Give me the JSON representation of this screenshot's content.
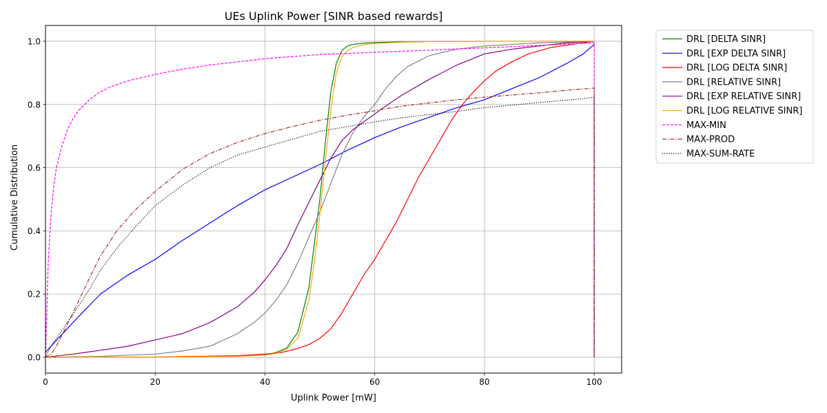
{
  "chart_data": {
    "type": "line",
    "title": "UEs Uplink Power [SINR based rewards]",
    "xlabel": "Uplink Power [mW]",
    "ylabel": "Cumulative Distribution",
    "xlim": [
      0,
      105
    ],
    "ylim": [
      -0.05,
      1.05
    ],
    "xticks": [
      0,
      20,
      40,
      60,
      80,
      100
    ],
    "xtick_labels": [
      "0",
      "20",
      "40",
      "60",
      "80",
      "100"
    ],
    "yticks": [
      0.0,
      0.2,
      0.4,
      0.6,
      0.8,
      1.0
    ],
    "ytick_labels": [
      "0.0",
      "0.2",
      "0.4",
      "0.6",
      "0.8",
      "1.0"
    ],
    "grid": true,
    "legend_position": "outside-right-top",
    "series": [
      {
        "name": "DRL [DELTA SINR]",
        "color": "#008000",
        "dash": "solid",
        "x": [
          0,
          20,
          35,
          40,
          42,
          44,
          46,
          48,
          50,
          51,
          52,
          53,
          54,
          55,
          56,
          58,
          60,
          65,
          70,
          80,
          100
        ],
        "y": [
          0,
          0.001,
          0.004,
          0.008,
          0.015,
          0.03,
          0.08,
          0.22,
          0.5,
          0.68,
          0.84,
          0.93,
          0.97,
          0.985,
          0.99,
          0.994,
          0.996,
          0.998,
          0.999,
          1.0,
          1.0
        ]
      },
      {
        "name": "DRL [EXP DELTA SINR]",
        "color": "#0000ff",
        "dash": "solid",
        "x": [
          0,
          1,
          5,
          10,
          15,
          20,
          25,
          30,
          35,
          40,
          45,
          50,
          55,
          60,
          65,
          70,
          75,
          80,
          85,
          90,
          95,
          98,
          100
        ],
        "y": [
          0.015,
          0.035,
          0.11,
          0.2,
          0.26,
          0.31,
          0.37,
          0.425,
          0.48,
          0.53,
          0.57,
          0.61,
          0.655,
          0.695,
          0.73,
          0.76,
          0.79,
          0.815,
          0.85,
          0.885,
          0.93,
          0.96,
          0.99
        ]
      },
      {
        "name": "DRL [LOG DELTA SINR]",
        "color": "#ff0000",
        "dash": "solid",
        "x": [
          0,
          20,
          35,
          40,
          43,
          46,
          48,
          50,
          52,
          54,
          56,
          58,
          60,
          62,
          64,
          66,
          68,
          70,
          72,
          74,
          76,
          78,
          80,
          82,
          85,
          88,
          92,
          96,
          100
        ],
        "y": [
          0,
          0.001,
          0.005,
          0.01,
          0.015,
          0.028,
          0.04,
          0.06,
          0.09,
          0.14,
          0.2,
          0.26,
          0.31,
          0.37,
          0.43,
          0.5,
          0.57,
          0.63,
          0.69,
          0.75,
          0.8,
          0.84,
          0.875,
          0.905,
          0.935,
          0.96,
          0.98,
          0.99,
          1.0
        ]
      },
      {
        "name": "DRL [RELATIVE SINR]",
        "color": "#808080",
        "dash": "solid",
        "x": [
          0,
          10,
          20,
          25,
          30,
          35,
          38,
          40,
          42,
          44,
          46,
          48,
          50,
          52,
          54,
          56,
          58,
          60,
          62,
          64,
          66,
          70,
          75,
          80,
          85,
          90,
          100
        ],
        "y": [
          0,
          0.003,
          0.01,
          0.02,
          0.035,
          0.075,
          0.11,
          0.14,
          0.18,
          0.23,
          0.3,
          0.38,
          0.46,
          0.55,
          0.64,
          0.71,
          0.76,
          0.8,
          0.85,
          0.89,
          0.92,
          0.955,
          0.975,
          0.985,
          0.99,
          0.995,
          1.0
        ]
      },
      {
        "name": "DRL [EXP RELATIVE SINR]",
        "color": "#800080",
        "dash": "solid",
        "x": [
          0,
          5,
          10,
          15,
          20,
          25,
          30,
          35,
          38,
          40,
          42,
          44,
          46,
          48,
          50,
          52,
          54,
          56,
          58,
          60,
          62,
          65,
          70,
          75,
          80,
          85,
          90,
          95,
          100
        ],
        "y": [
          0,
          0.01,
          0.022,
          0.035,
          0.055,
          0.075,
          0.11,
          0.16,
          0.205,
          0.245,
          0.29,
          0.345,
          0.42,
          0.49,
          0.56,
          0.63,
          0.685,
          0.72,
          0.745,
          0.77,
          0.795,
          0.83,
          0.88,
          0.925,
          0.96,
          0.975,
          0.985,
          0.995,
          1.0
        ]
      },
      {
        "name": "DRL [LOG RELATIVE SINR]",
        "color": "#ffa500",
        "dash": "solid",
        "x": [
          0,
          20,
          35,
          40,
          42,
          44,
          46,
          48,
          49,
          50,
          51,
          52,
          53,
          54,
          55,
          56,
          58,
          60,
          65,
          70,
          80,
          100
        ],
        "y": [
          0,
          0.001,
          0.003,
          0.007,
          0.012,
          0.025,
          0.06,
          0.18,
          0.3,
          0.45,
          0.62,
          0.78,
          0.9,
          0.95,
          0.97,
          0.98,
          0.99,
          0.993,
          0.997,
          0.999,
          1.0,
          1.0
        ]
      },
      {
        "name": "MAX-MIN",
        "color": "#ff00ff",
        "dash": "dashed",
        "x": [
          0,
          0.5,
          1,
          1.5,
          2,
          3,
          4,
          5,
          6,
          8,
          10,
          12,
          15,
          20,
          25,
          30,
          40,
          50,
          60,
          70,
          80,
          90,
          100
        ],
        "y": [
          0,
          0.3,
          0.45,
          0.54,
          0.6,
          0.67,
          0.72,
          0.755,
          0.78,
          0.815,
          0.84,
          0.857,
          0.875,
          0.895,
          0.912,
          0.925,
          0.945,
          0.958,
          0.965,
          0.972,
          0.979,
          0.987,
          0.995
        ]
      },
      {
        "name": "MAX-PROD",
        "color": "#a52a2a",
        "dash": "dashdot",
        "x": [
          0,
          1,
          2,
          3,
          5,
          8,
          10,
          13,
          16,
          20,
          25,
          30,
          35,
          40,
          45,
          50,
          55,
          60,
          65,
          70,
          75,
          80,
          85,
          90,
          95,
          100
        ],
        "y": [
          0,
          0.01,
          0.035,
          0.07,
          0.14,
          0.25,
          0.32,
          0.4,
          0.46,
          0.525,
          0.595,
          0.645,
          0.68,
          0.708,
          0.73,
          0.75,
          0.766,
          0.78,
          0.795,
          0.805,
          0.815,
          0.823,
          0.83,
          0.837,
          0.845,
          0.852
        ]
      },
      {
        "name": "MAX-SUM-RATE",
        "color": "#000000",
        "dash": "dotted",
        "x": [
          0,
          1,
          2,
          3,
          5,
          8,
          10,
          13,
          16,
          20,
          25,
          30,
          35,
          40,
          45,
          50,
          55,
          60,
          65,
          70,
          75,
          80,
          85,
          90,
          95,
          100
        ],
        "y": [
          0,
          0.035,
          0.06,
          0.085,
          0.135,
          0.215,
          0.275,
          0.345,
          0.405,
          0.48,
          0.545,
          0.6,
          0.64,
          0.665,
          0.69,
          0.715,
          0.73,
          0.745,
          0.758,
          0.768,
          0.778,
          0.79,
          0.798,
          0.806,
          0.814,
          0.822
        ]
      }
    ]
  }
}
